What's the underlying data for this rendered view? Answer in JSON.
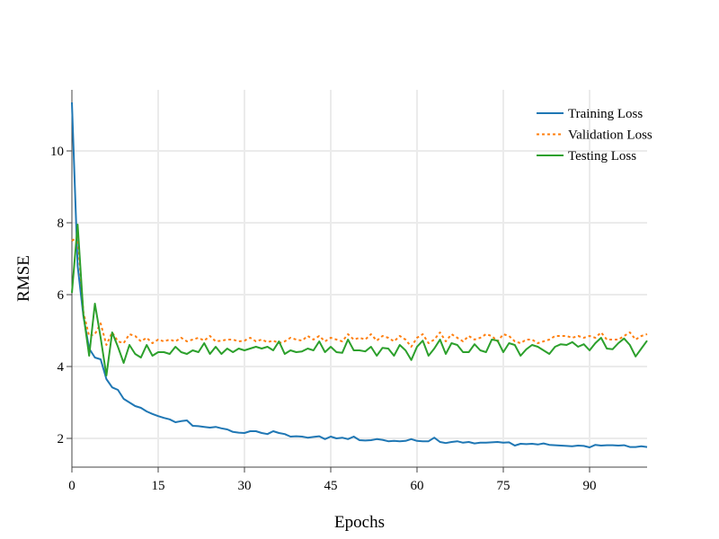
{
  "chart_data": {
    "type": "line",
    "title": "",
    "xlabel": "Epochs",
    "ylabel": "RMSE",
    "xlim": [
      0,
      100
    ],
    "ylim": [
      1.2,
      11.7
    ],
    "xticks": [
      0,
      15,
      30,
      45,
      60,
      75,
      90
    ],
    "yticks": [
      2,
      4,
      6,
      8,
      10
    ],
    "grid": true,
    "legend_position": "top-right",
    "x": [
      0,
      1,
      2,
      3,
      4,
      5,
      6,
      7,
      8,
      9,
      10,
      11,
      12,
      13,
      14,
      15,
      16,
      17,
      18,
      19,
      20,
      21,
      22,
      23,
      24,
      25,
      26,
      27,
      28,
      29,
      30,
      31,
      32,
      33,
      34,
      35,
      36,
      37,
      38,
      39,
      40,
      41,
      42,
      43,
      44,
      45,
      46,
      47,
      48,
      49,
      50,
      51,
      52,
      53,
      54,
      55,
      56,
      57,
      58,
      59,
      60,
      61,
      62,
      63,
      64,
      65,
      66,
      67,
      68,
      69,
      70,
      71,
      72,
      73,
      74,
      75,
      76,
      77,
      78,
      79,
      80,
      81,
      82,
      83,
      84,
      85,
      86,
      87,
      88,
      89,
      90,
      91,
      92,
      93,
      94,
      95,
      96,
      97,
      98,
      99,
      100
    ],
    "series": [
      {
        "name": "Training Loss",
        "color": "#1f77b4",
        "style": "solid",
        "values": [
          11.35,
          6.8,
          5.4,
          4.5,
          4.25,
          4.2,
          3.65,
          3.42,
          3.35,
          3.1,
          3.0,
          2.9,
          2.85,
          2.75,
          2.68,
          2.62,
          2.57,
          2.53,
          2.45,
          2.48,
          2.5,
          2.35,
          2.34,
          2.32,
          2.3,
          2.32,
          2.28,
          2.25,
          2.18,
          2.16,
          2.15,
          2.2,
          2.2,
          2.15,
          2.12,
          2.2,
          2.15,
          2.12,
          2.05,
          2.06,
          2.05,
          2.02,
          2.04,
          2.06,
          1.98,
          2.05,
          2.0,
          2.02,
          1.98,
          2.05,
          1.95,
          1.94,
          1.95,
          1.98,
          1.96,
          1.92,
          1.93,
          1.92,
          1.93,
          1.98,
          1.93,
          1.92,
          1.92,
          2.02,
          1.9,
          1.87,
          1.9,
          1.92,
          1.88,
          1.9,
          1.86,
          1.88,
          1.88,
          1.89,
          1.9,
          1.88,
          1.89,
          1.8,
          1.85,
          1.84,
          1.85,
          1.83,
          1.86,
          1.82,
          1.81,
          1.8,
          1.79,
          1.78,
          1.8,
          1.79,
          1.75,
          1.82,
          1.8,
          1.81,
          1.81,
          1.8,
          1.81,
          1.76,
          1.76,
          1.78,
          1.76
        ]
      },
      {
        "name": "Validation Loss",
        "color": "#ff7f0e",
        "style": "dotted",
        "values": [
          7.5,
          7.6,
          5.5,
          4.85,
          4.9,
          5.2,
          4.6,
          4.95,
          4.7,
          4.65,
          4.9,
          4.85,
          4.7,
          4.8,
          4.65,
          4.75,
          4.7,
          4.75,
          4.7,
          4.8,
          4.7,
          4.75,
          4.8,
          4.72,
          4.85,
          4.7,
          4.72,
          4.75,
          4.75,
          4.7,
          4.72,
          4.8,
          4.7,
          4.75,
          4.68,
          4.72,
          4.65,
          4.7,
          4.8,
          4.75,
          4.72,
          4.85,
          4.75,
          4.85,
          4.7,
          4.8,
          4.75,
          4.7,
          4.9,
          4.75,
          4.8,
          4.75,
          4.9,
          4.72,
          4.85,
          4.8,
          4.7,
          4.85,
          4.75,
          4.55,
          4.8,
          4.9,
          4.65,
          4.75,
          4.95,
          4.7,
          4.9,
          4.8,
          4.7,
          4.85,
          4.75,
          4.8,
          4.9,
          4.85,
          4.7,
          4.9,
          4.85,
          4.7,
          4.65,
          4.75,
          4.75,
          4.65,
          4.7,
          4.75,
          4.85,
          4.85,
          4.85,
          4.8,
          4.85,
          4.8,
          4.85,
          4.8,
          4.95,
          4.75,
          4.75,
          4.75,
          4.85,
          4.95,
          4.75,
          4.85,
          4.9
        ]
      },
      {
        "name": "Testing Loss",
        "color": "#2ca02c",
        "style": "solid",
        "values": [
          6.05,
          7.95,
          5.45,
          4.3,
          5.75,
          4.8,
          3.75,
          4.95,
          4.55,
          4.1,
          4.6,
          4.35,
          4.25,
          4.6,
          4.3,
          4.4,
          4.4,
          4.35,
          4.55,
          4.4,
          4.35,
          4.45,
          4.4,
          4.65,
          4.35,
          4.55,
          4.35,
          4.5,
          4.4,
          4.5,
          4.45,
          4.5,
          4.55,
          4.5,
          4.55,
          4.45,
          4.7,
          4.35,
          4.45,
          4.4,
          4.42,
          4.5,
          4.45,
          4.7,
          4.4,
          4.55,
          4.4,
          4.38,
          4.75,
          4.45,
          4.45,
          4.42,
          4.55,
          4.3,
          4.52,
          4.5,
          4.3,
          4.6,
          4.45,
          4.18,
          4.55,
          4.72,
          4.3,
          4.5,
          4.75,
          4.35,
          4.65,
          4.6,
          4.4,
          4.4,
          4.62,
          4.45,
          4.4,
          4.75,
          4.72,
          4.4,
          4.65,
          4.6,
          4.3,
          4.48,
          4.6,
          4.55,
          4.45,
          4.35,
          4.55,
          4.62,
          4.6,
          4.68,
          4.55,
          4.62,
          4.45,
          4.65,
          4.8,
          4.5,
          4.48,
          4.65,
          4.78,
          4.6,
          4.28,
          4.5,
          4.72
        ]
      }
    ]
  }
}
